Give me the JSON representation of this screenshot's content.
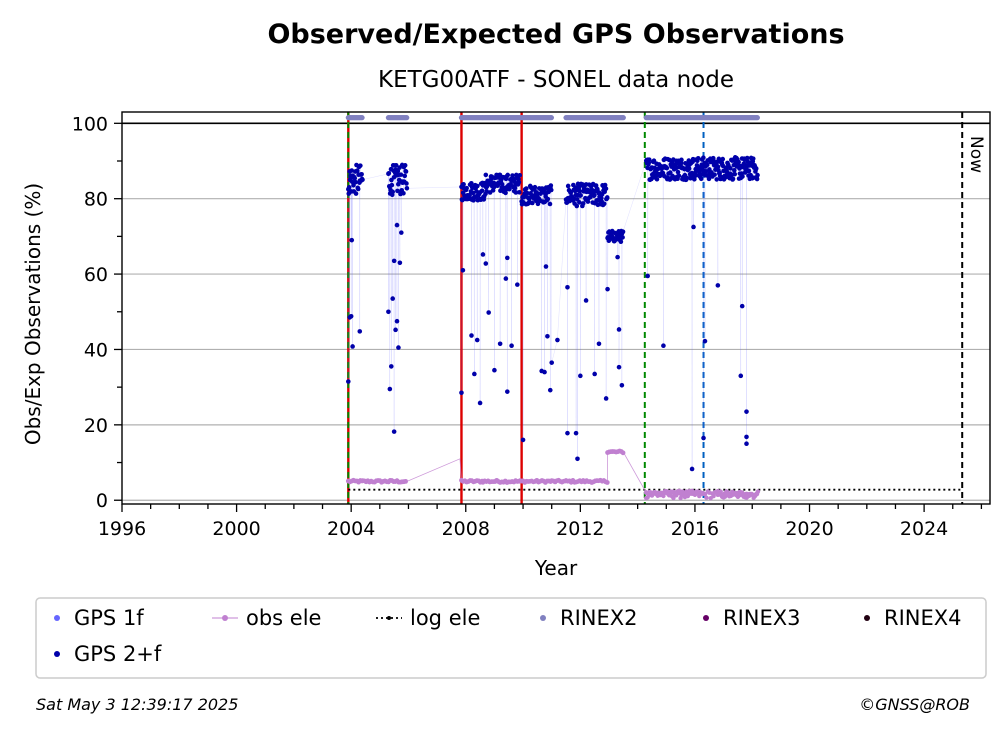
{
  "header": {
    "title": "Observed/Expected GPS Observations",
    "subtitle": "KETG00ATF - SONEL data node"
  },
  "footer": {
    "timestamp": "Sat May  3 12:39:17 2025",
    "credit": "©GNSS@ROB"
  },
  "chart_data": {
    "type": "scatter",
    "title": "Observed/Expected GPS Observations",
    "subtitle": "KETG00ATF - SONEL data node",
    "xlabel": "Year",
    "ylabel": "Obs/Exp Observations (%)",
    "xlim": [
      1996,
      2026.3
    ],
    "ylim": [
      -1,
      103
    ],
    "x_ticks": [
      1996,
      2000,
      2004,
      2008,
      2012,
      2016,
      2020,
      2024
    ],
    "x_tick_labels": [
      "1996",
      "2000",
      "2004",
      "2008",
      "2012",
      "2016",
      "2020",
      "2024"
    ],
    "y_ticks": [
      0,
      20,
      40,
      60,
      80,
      100
    ],
    "y_tick_labels": [
      "0",
      "20",
      "40",
      "60",
      "80",
      "100"
    ],
    "grid": "horizontal",
    "legend_position": "bottom",
    "colors": {
      "gps1f": "#6666ff",
      "gps2f": "#0000aa",
      "obs_ele": "#c080d0",
      "log_ele": "#000000",
      "rinex2": "#8080c0",
      "rinex3": "#660066",
      "rinex4": "#220011",
      "receiver_change": "#dd0000",
      "antenna_change": "#008800",
      "other_event": "#0060c0",
      "now": "#000000"
    },
    "legend": [
      {
        "key": "gps1f",
        "label": "GPS 1f",
        "marker": "dot"
      },
      {
        "key": "obs_ele",
        "label": "obs ele",
        "marker": "line-dot"
      },
      {
        "key": "log_ele",
        "label": "log ele",
        "marker": "dotted-dot"
      },
      {
        "key": "rinex2",
        "label": "RINEX2",
        "marker": "dot"
      },
      {
        "key": "rinex3",
        "label": "RINEX3",
        "marker": "dot"
      },
      {
        "key": "rinex4",
        "label": "RINEX4",
        "marker": "dot"
      },
      {
        "key": "gps2f",
        "label": "GPS 2+f",
        "marker": "dot"
      }
    ],
    "reference_line": {
      "y": 100
    },
    "vertical_lines": [
      {
        "x": 2003.9,
        "kind": "receiver_change",
        "style": "solid"
      },
      {
        "x": 2003.9,
        "kind": "antenna_change",
        "style": "dashed"
      },
      {
        "x": 2007.85,
        "kind": "receiver_change",
        "style": "solid"
      },
      {
        "x": 2009.95,
        "kind": "receiver_change",
        "style": "solid"
      },
      {
        "x": 2014.25,
        "kind": "antenna_change",
        "style": "dashed"
      },
      {
        "x": 2016.3,
        "kind": "other_event",
        "style": "dashed"
      },
      {
        "x": 2025.33,
        "kind": "now",
        "style": "dashed",
        "label": "Now"
      }
    ],
    "log_ele": {
      "x_start": 2003.9,
      "x_end": 2025.33,
      "y": 2.8
    },
    "rinex2_periods": [
      {
        "start": 2003.9,
        "end": 2004.4
      },
      {
        "start": 2005.3,
        "end": 2005.95
      },
      {
        "start": 2007.85,
        "end": 2008.6
      },
      {
        "start": 2008.6,
        "end": 2009.9
      },
      {
        "start": 2009.95,
        "end": 2011.0
      },
      {
        "start": 2011.5,
        "end": 2013.5
      },
      {
        "start": 2014.3,
        "end": 2018.2
      }
    ],
    "rinex2_level": 101.5,
    "gps2f_segments": [
      {
        "start": 2003.9,
        "end": 2004.4,
        "level": 85,
        "spread": 4
      },
      {
        "start": 2005.3,
        "end": 2005.95,
        "level": 85,
        "spread": 4
      },
      {
        "start": 2007.85,
        "end": 2008.7,
        "level": 82,
        "spread": 2.5
      },
      {
        "start": 2008.7,
        "end": 2009.9,
        "level": 84,
        "spread": 2.5
      },
      {
        "start": 2009.95,
        "end": 2011.0,
        "level": 81,
        "spread": 2.5
      },
      {
        "start": 2011.5,
        "end": 2012.95,
        "level": 81,
        "spread": 3
      },
      {
        "start": 2012.95,
        "end": 2013.5,
        "level": 70,
        "spread": 1.5
      },
      {
        "start": 2014.3,
        "end": 2018.2,
        "level": 88,
        "spread": 3
      }
    ],
    "gps2f_outliers": [
      [
        2003.9,
        31.5
      ],
      [
        2003.95,
        48.5
      ],
      [
        2004.0,
        48.8
      ],
      [
        2004.02,
        69
      ],
      [
        2004.05,
        40.8
      ],
      [
        2004.3,
        44.8
      ],
      [
        2005.3,
        50
      ],
      [
        2005.35,
        29.5
      ],
      [
        2005.4,
        35.5
      ],
      [
        2005.45,
        53.5
      ],
      [
        2005.5,
        18.2
      ],
      [
        2005.55,
        45.2
      ],
      [
        2005.6,
        47.5
      ],
      [
        2005.65,
        40.5
      ],
      [
        2005.7,
        63
      ],
      [
        2005.75,
        71
      ],
      [
        2005.5,
        63.5
      ],
      [
        2005.6,
        73
      ],
      [
        2007.85,
        28.5
      ],
      [
        2007.9,
        61
      ],
      [
        2008.2,
        43.7
      ],
      [
        2008.3,
        33.5
      ],
      [
        2008.4,
        42.5
      ],
      [
        2008.5,
        25.8
      ],
      [
        2008.6,
        65.2
      ],
      [
        2008.7,
        62.8
      ],
      [
        2008.8,
        49.8
      ],
      [
        2009.0,
        34.5
      ],
      [
        2009.2,
        41.5
      ],
      [
        2009.4,
        58.8
      ],
      [
        2009.45,
        28.8
      ],
      [
        2009.45,
        64.3
      ],
      [
        2009.6,
        41
      ],
      [
        2009.8,
        57.2
      ],
      [
        2010.0,
        16
      ],
      [
        2010.65,
        34.3
      ],
      [
        2010.75,
        34
      ],
      [
        2010.8,
        62
      ],
      [
        2010.85,
        43.5
      ],
      [
        2010.95,
        29.2
      ],
      [
        2011.0,
        36.5
      ],
      [
        2011.2,
        42.5
      ],
      [
        2011.55,
        17.8
      ],
      [
        2011.55,
        56.5
      ],
      [
        2011.85,
        17.8
      ],
      [
        2011.9,
        11
      ],
      [
        2012.0,
        33
      ],
      [
        2012.2,
        53
      ],
      [
        2012.5,
        33.5
      ],
      [
        2012.65,
        41.5
      ],
      [
        2012.9,
        27
      ],
      [
        2012.95,
        56
      ],
      [
        2013.3,
        64.5
      ],
      [
        2013.35,
        45.3
      ],
      [
        2013.45,
        30.5
      ],
      [
        2013.35,
        35.3
      ],
      [
        2014.35,
        59.5
      ],
      [
        2014.9,
        41
      ],
      [
        2015.9,
        8.3
      ],
      [
        2015.95,
        72.5
      ],
      [
        2016.3,
        16.5
      ],
      [
        2016.35,
        42.2
      ],
      [
        2016.8,
        57
      ],
      [
        2017.6,
        33
      ],
      [
        2017.65,
        51.5
      ],
      [
        2017.8,
        23.5
      ],
      [
        2017.8,
        16.8
      ],
      [
        2017.8,
        15
      ]
    ],
    "obs_ele_series": [
      [
        2003.9,
        5
      ],
      [
        2004.4,
        5
      ],
      [
        2005.3,
        5
      ],
      [
        2005.95,
        5
      ],
      [
        2007.8,
        11
      ],
      [
        2007.85,
        5
      ],
      [
        2008.6,
        5
      ],
      [
        2009.9,
        5
      ],
      [
        2010.0,
        5
      ],
      [
        2011.0,
        5
      ],
      [
        2011.5,
        5
      ],
      [
        2012.95,
        5
      ],
      [
        2012.95,
        12.8
      ],
      [
        2013.5,
        12.8
      ],
      [
        2014.3,
        2
      ],
      [
        2015.8,
        2
      ],
      [
        2016.3,
        2
      ],
      [
        2016.8,
        1.5
      ],
      [
        2017.5,
        1.5
      ],
      [
        2018.2,
        1.5
      ]
    ]
  }
}
